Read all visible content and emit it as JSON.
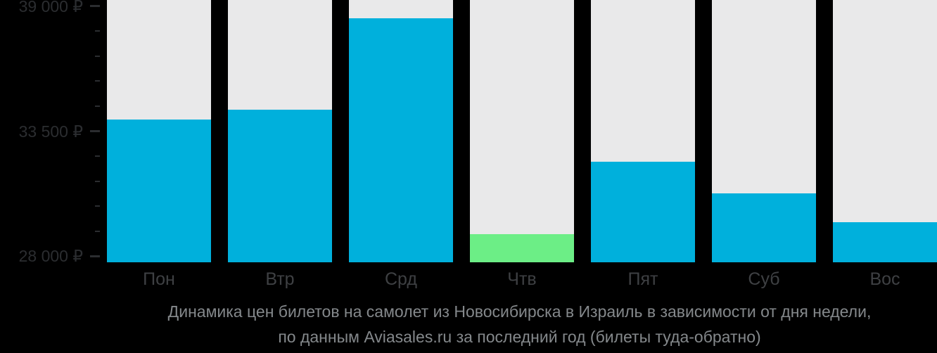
{
  "chart_data": {
    "type": "bar",
    "title": "Динамика цен билетов на самолет из Новосибирска в Израиль в зависимости от дня недели,",
    "subtitle": "по данным Aviasales.ru за последний год (билеты туда-обратно)",
    "categories": [
      "Пон",
      "Втр",
      "Срд",
      "Чтв",
      "Пят",
      "Суб",
      "Вос"
    ],
    "values": [
      34000,
      34450,
      38480,
      28950,
      32140,
      30750,
      29480
    ],
    "currency": "₽",
    "highlight_index": 3,
    "ylim": [
      27722,
      39278
    ],
    "y_ticks_major": {
      "values": [
        28000,
        33500,
        39000
      ],
      "labels": [
        "28 000 ₽",
        "33 500 ₽",
        "39 000 ₽"
      ]
    },
    "y_minor_tick_step": 1100,
    "grid": false,
    "legend": false,
    "xlabel": "",
    "ylabel": "",
    "colors": {
      "bar": "#00b0dc",
      "highlight": "#6cee86",
      "column_background": "#e9e9ea",
      "page_background": "#000000",
      "tick": "#2b2d30",
      "axis_label": "#2b2d30",
      "day_label": "#3e4043",
      "caption": "#84888b"
    }
  }
}
